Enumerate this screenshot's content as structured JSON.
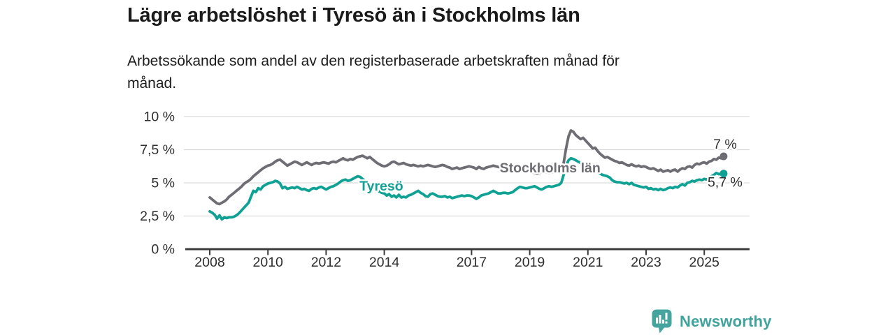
{
  "header": {
    "title": "Lägre arbetslöshet i Tyresö än i Stockholms län",
    "subtitle": "Arbetssökande som andel av den registerbaserade arbetskraften månad för\nmånad."
  },
  "footer": {
    "brand": "Newsworthy"
  },
  "colors": {
    "tyreso_teal": "#0fa294",
    "stockholm_gray": "#6e6d74",
    "grid": "#d9d9d9",
    "axis": "#3c3c3c",
    "tick_text": "#2e2e2e",
    "title_text": "#1a1a1a",
    "brand_teal": "#3fa29b",
    "background": "#ffffff"
  },
  "chart_data": {
    "type": "line",
    "title": "Lägre arbetslöshet i Tyresö än i Stockholms län",
    "subtitle": "Arbetssökande som andel av den registerbaserade arbetskraften månad för månad.",
    "unit": "%",
    "grid": "horizontal",
    "legend": "inline-labels-on-lines",
    "ylim": [
      0,
      10
    ],
    "x_start_year": 2008.0,
    "x_step_months": 1,
    "y_axis_ticks": [
      {
        "value": 10,
        "label": "10 %"
      },
      {
        "value": 7.5,
        "label": "7,5 %"
      },
      {
        "value": 5,
        "label": "5 %"
      },
      {
        "value": 2.5,
        "label": "2,5 %"
      },
      {
        "value": 0,
        "label": "0 %"
      }
    ],
    "x_axis_ticks": [
      {
        "value": 2008,
        "label": "2008"
      },
      {
        "value": 2010,
        "label": "2010"
      },
      {
        "value": 2012,
        "label": "2012"
      },
      {
        "value": 2014,
        "label": "2014"
      },
      {
        "value": 2017,
        "label": "2017"
      },
      {
        "value": 2019,
        "label": "2019"
      },
      {
        "value": 2021,
        "label": "2021"
      },
      {
        "value": 2023,
        "label": "2023"
      },
      {
        "value": 2025,
        "label": "2025"
      }
    ],
    "series": [
      {
        "name": "Stockholms län",
        "color": "#6e6d74",
        "end_label": "7 %",
        "end_label_side": "above",
        "label_at": {
          "x": 2019.7,
          "y": 6.15
        },
        "values": [
          3.9,
          3.75,
          3.6,
          3.45,
          3.4,
          3.5,
          3.6,
          3.75,
          3.95,
          4.1,
          4.25,
          4.4,
          4.55,
          4.7,
          4.9,
          5.05,
          5.15,
          5.3,
          5.5,
          5.65,
          5.8,
          5.95,
          6.1,
          6.2,
          6.3,
          6.35,
          6.45,
          6.6,
          6.7,
          6.75,
          6.6,
          6.45,
          6.3,
          6.4,
          6.5,
          6.6,
          6.55,
          6.45,
          6.35,
          6.45,
          6.55,
          6.45,
          6.35,
          6.45,
          6.5,
          6.45,
          6.5,
          6.55,
          6.5,
          6.45,
          6.55,
          6.6,
          6.55,
          6.65,
          6.75,
          6.85,
          6.75,
          6.7,
          6.8,
          6.75,
          6.85,
          6.95,
          7.0,
          7.05,
          6.95,
          6.85,
          6.95,
          6.8,
          6.65,
          6.5,
          6.4,
          6.3,
          6.25,
          6.3,
          6.4,
          6.55,
          6.6,
          6.5,
          6.4,
          6.45,
          6.5,
          6.4,
          6.35,
          6.3,
          6.35,
          6.3,
          6.25,
          6.3,
          6.25,
          6.3,
          6.35,
          6.3,
          6.25,
          6.2,
          6.25,
          6.3,
          6.35,
          6.3,
          6.2,
          6.15,
          6.05,
          6.1,
          6.15,
          6.05,
          6.1,
          6.15,
          6.2,
          6.25,
          6.2,
          6.15,
          6.05,
          6.2,
          6.1,
          6.05,
          6.15,
          6.2,
          6.25,
          6.3,
          6.25,
          6.2,
          6.15,
          6.1,
          6.05,
          6.0,
          5.95,
          5.9,
          5.95,
          5.9,
          5.85,
          5.9,
          5.95,
          5.9,
          5.85,
          5.8,
          5.75,
          5.7,
          5.75,
          5.8,
          5.85,
          5.8,
          5.75,
          5.8,
          5.85,
          5.9,
          5.9,
          5.95,
          6.5,
          7.6,
          8.5,
          8.95,
          8.85,
          8.6,
          8.45,
          8.3,
          8.4,
          8.2,
          8.0,
          7.8,
          7.6,
          7.65,
          7.4,
          7.2,
          7.05,
          6.9,
          6.95,
          6.85,
          6.75,
          6.65,
          6.6,
          6.5,
          6.55,
          6.45,
          6.35,
          6.3,
          6.4,
          6.3,
          6.25,
          6.3,
          6.2,
          6.25,
          6.2,
          6.1,
          6.05,
          6.1,
          6.0,
          5.9,
          6.0,
          5.85,
          5.9,
          5.95,
          5.85,
          5.95,
          6.0,
          5.85,
          6.0,
          6.1,
          6.05,
          6.2,
          6.25,
          6.15,
          6.35,
          6.45,
          6.4,
          6.5,
          6.55,
          6.45,
          6.6,
          6.65,
          6.8,
          6.75,
          6.9,
          6.85,
          7.0
        ]
      },
      {
        "name": "Tyresö",
        "color": "#0fa294",
        "end_label": "5,7 %",
        "end_label_side": "below",
        "label_at": {
          "x": 2013.9,
          "y": 4.79
        },
        "values": [
          2.85,
          2.75,
          2.6,
          2.3,
          2.55,
          2.25,
          2.4,
          2.35,
          2.4,
          2.4,
          2.45,
          2.55,
          2.7,
          2.9,
          3.1,
          3.3,
          3.5,
          3.95,
          4.4,
          4.3,
          4.6,
          4.5,
          4.75,
          4.85,
          4.95,
          5.0,
          5.05,
          5.15,
          5.1,
          4.95,
          4.6,
          4.7,
          4.55,
          4.6,
          4.65,
          4.6,
          4.7,
          4.6,
          4.5,
          4.55,
          4.45,
          4.4,
          4.55,
          4.6,
          4.55,
          4.65,
          4.7,
          4.6,
          4.5,
          4.6,
          4.7,
          4.75,
          4.85,
          4.95,
          5.1,
          5.2,
          5.25,
          5.15,
          5.2,
          5.3,
          5.4,
          5.5,
          5.45,
          5.3,
          5.15,
          5.0,
          4.85,
          4.7,
          4.55,
          4.45,
          4.35,
          4.25,
          4.2,
          4.05,
          4.15,
          3.95,
          4.05,
          3.9,
          4.1,
          3.9,
          3.95,
          3.9,
          4.05,
          4.1,
          4.2,
          4.3,
          4.4,
          4.25,
          4.15,
          4.0,
          3.95,
          4.15,
          4.2,
          4.1,
          4.0,
          3.95,
          3.95,
          4.0,
          3.9,
          3.95,
          3.85,
          3.9,
          3.95,
          4.0,
          4.05,
          4.0,
          4.05,
          4.05,
          4.0,
          3.9,
          3.8,
          3.9,
          4.05,
          4.1,
          4.15,
          4.2,
          4.3,
          4.4,
          4.3,
          4.2,
          4.2,
          4.25,
          4.25,
          4.2,
          4.25,
          4.3,
          4.45,
          4.6,
          4.7,
          4.65,
          4.6,
          4.6,
          4.65,
          4.7,
          4.75,
          4.65,
          4.55,
          4.5,
          4.6,
          4.7,
          4.75,
          4.7,
          4.75,
          4.8,
          4.85,
          5.0,
          5.6,
          6.3,
          6.7,
          6.85,
          6.8,
          6.7,
          6.6,
          6.5,
          6.4,
          6.3,
          6.2,
          6.1,
          6.0,
          5.9,
          5.8,
          5.7,
          5.6,
          5.55,
          5.5,
          5.4,
          5.2,
          5.1,
          5.05,
          5.05,
          5.0,
          4.95,
          5.0,
          4.9,
          5.0,
          4.85,
          4.8,
          4.75,
          4.7,
          4.65,
          4.7,
          4.55,
          4.6,
          4.5,
          4.55,
          4.45,
          4.55,
          4.45,
          4.5,
          4.6,
          4.65,
          4.6,
          4.7,
          4.65,
          4.8,
          4.9,
          4.8,
          5.0,
          5.05,
          5.15,
          5.1,
          5.2,
          5.25,
          5.2,
          5.3,
          5.25,
          5.4,
          5.5,
          5.6,
          5.75,
          5.65,
          5.7,
          5.7
        ]
      }
    ]
  }
}
